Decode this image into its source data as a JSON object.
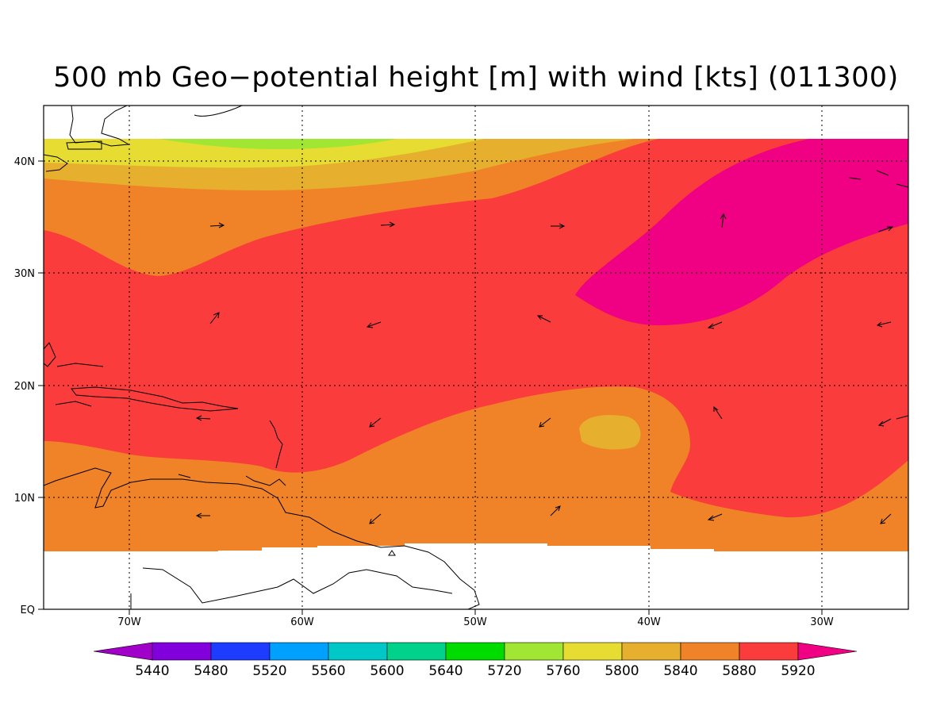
{
  "title": "500 mb Geo−potential height [m] with wind [kts] (011300)",
  "lat_ticks": [
    "40N",
    "30N",
    "20N",
    "10N",
    "EQ"
  ],
  "lon_ticks": [
    "70W",
    "60W",
    "50W",
    "40W",
    "30W"
  ],
  "colorbar": {
    "labels": [
      "5440",
      "5480",
      "5520",
      "5560",
      "5600",
      "5640",
      "5720",
      "5760",
      "5800",
      "5840",
      "5880",
      "5920"
    ],
    "colors": [
      "#a000c8",
      "#8200dc",
      "#1e3cff",
      "#00a0ff",
      "#00c8c8",
      "#00d28c",
      "#00dc00",
      "#a0e632",
      "#e6dc32",
      "#e6af2d",
      "#f08228",
      "#fa3c3c",
      "#f00082"
    ]
  },
  "fill_colors": {
    "c5760": "#a0e632",
    "c5800": "#e6dc32",
    "c5840": "#e6af2d",
    "c5880": "#f08228",
    "c5920": "#fa3c3c",
    "c5960": "#f00082"
  }
}
